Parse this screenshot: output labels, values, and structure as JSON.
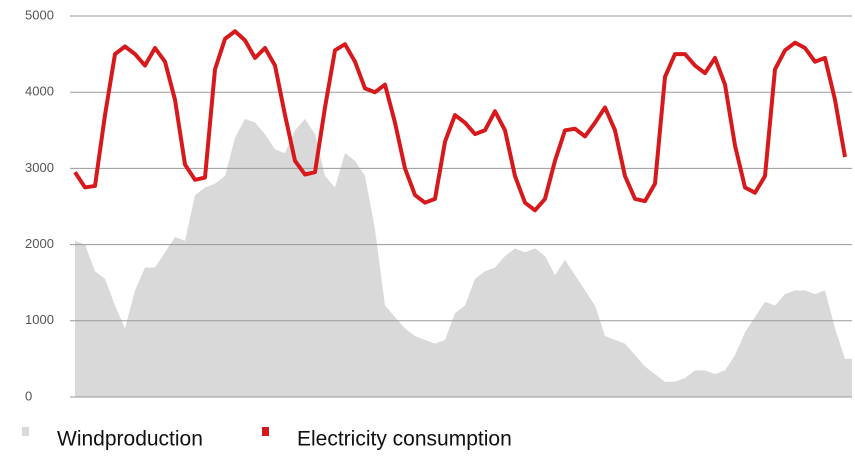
{
  "chart_data": {
    "type": "line",
    "series": [
      {
        "name": "Windproduction",
        "color": "#d9d9d9",
        "fill": true,
        "values": [
          2050,
          2000,
          1650,
          1550,
          1200,
          900,
          1400,
          1700,
          1700,
          1900,
          2100,
          2050,
          2650,
          2750,
          2800,
          2900,
          3400,
          3650,
          3600,
          3450,
          3250,
          3200,
          3500,
          3650,
          3450,
          2900,
          2750,
          3200,
          3100,
          2900,
          2200,
          1200,
          1050,
          900,
          800,
          750,
          700,
          750,
          1100,
          1200,
          1550,
          1650,
          1700,
          1850,
          1950,
          1900,
          1950,
          1850,
          1600,
          1800,
          1600,
          1400,
          1200,
          800,
          750,
          700,
          550,
          400,
          300,
          200,
          200,
          250,
          350,
          350,
          300,
          350,
          550,
          850,
          1050,
          1250,
          1200,
          1350,
          1400,
          1400,
          1350,
          1400,
          900,
          500
        ]
      },
      {
        "name": "Electricity consumption",
        "color": "#d7191c",
        "fill": false,
        "values": [
          2950,
          2750,
          2770,
          3700,
          4500,
          4600,
          4500,
          4350,
          4580,
          4400,
          3900,
          3050,
          2850,
          2880,
          4300,
          4700,
          4800,
          4680,
          4450,
          4580,
          4350,
          3700,
          3100,
          2920,
          2950,
          3800,
          4550,
          4630,
          4400,
          4050,
          4000,
          4100,
          3600,
          3000,
          2650,
          2550,
          2600,
          3350,
          3700,
          3600,
          3450,
          3500,
          3750,
          3500,
          2900,
          2550,
          2450,
          2600,
          3100,
          3500,
          3520,
          3420,
          3600,
          3800,
          3500,
          2900,
          2600,
          2570,
          2800,
          4200,
          4500,
          4500,
          4350,
          4250,
          4450,
          4100,
          3300,
          2750,
          2680,
          2900,
          4300,
          4550,
          4650,
          4580,
          4400,
          4450,
          3900,
          3150
        ]
      }
    ],
    "ylim": [
      0,
      5000
    ],
    "yticks": [
      0,
      1000,
      2000,
      3000,
      4000,
      5000
    ],
    "grid": true
  }
}
